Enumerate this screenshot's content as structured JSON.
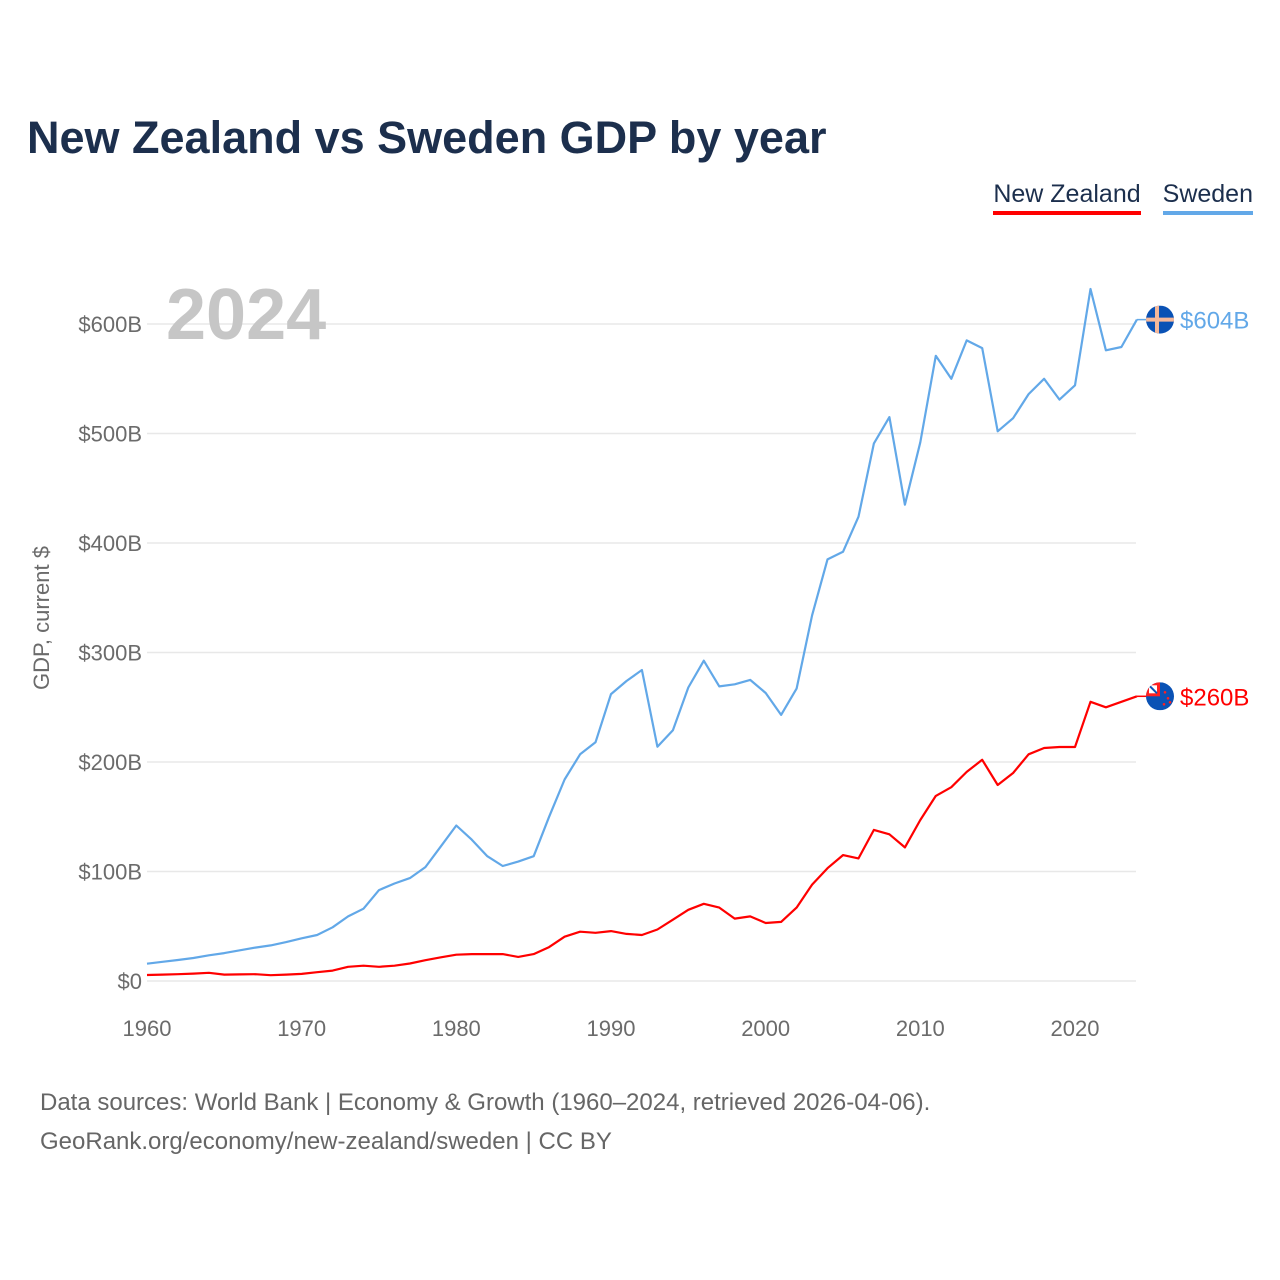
{
  "chart_data": {
    "type": "line",
    "title": "New Zealand vs Sweden GDP by year",
    "ylabel": "GDP, current $",
    "xlabel": "",
    "year_label": "2024",
    "xlim": [
      1960,
      2024
    ],
    "ylim": [
      0,
      650
    ],
    "x_ticks": [
      1960,
      1970,
      1980,
      1990,
      2000,
      2010,
      2020
    ],
    "y_ticks": [
      0,
      100,
      200,
      300,
      400,
      500,
      600
    ],
    "y_tick_labels": [
      "$0",
      "$100B",
      "$200B",
      "$300B",
      "$400B",
      "$500B",
      "$600B"
    ],
    "grid": true,
    "legend_position": "top-right",
    "x": [
      1960,
      1961,
      1962,
      1963,
      1964,
      1965,
      1966,
      1967,
      1968,
      1969,
      1970,
      1971,
      1972,
      1973,
      1974,
      1975,
      1976,
      1977,
      1978,
      1979,
      1980,
      1981,
      1982,
      1983,
      1984,
      1985,
      1986,
      1987,
      1988,
      1989,
      1990,
      1991,
      1992,
      1993,
      1994,
      1995,
      1996,
      1997,
      1998,
      1999,
      2000,
      2001,
      2002,
      2003,
      2004,
      2005,
      2006,
      2007,
      2008,
      2009,
      2010,
      2011,
      2012,
      2013,
      2014,
      2015,
      2016,
      2017,
      2018,
      2019,
      2020,
      2021,
      2022,
      2023,
      2024
    ],
    "series": [
      {
        "name": "New Zealand",
        "color": "#ff0000",
        "end_label": "$260B",
        "flag": "new-zealand-flag",
        "values": [
          5.5,
          5.8,
          6.2,
          6.8,
          7.5,
          5.8,
          6,
          6.2,
          5.3,
          5.8,
          6.5,
          8,
          9.5,
          13,
          14,
          13,
          14,
          16,
          19,
          21.6,
          24,
          24.6,
          24.6,
          24.6,
          22,
          24.6,
          31,
          40.5,
          45,
          44,
          45.6,
          43,
          42,
          47,
          56,
          65,
          70.5,
          67,
          57,
          59,
          53,
          54,
          67,
          88,
          103,
          115,
          112,
          138,
          134,
          122,
          147,
          169,
          177,
          191,
          202,
          179,
          190,
          207,
          212.8,
          213.7,
          213.7,
          255,
          250,
          255,
          260
        ]
      },
      {
        "name": "Sweden",
        "color": "#62a8e8",
        "end_label": "$604B",
        "flag": "sweden-flag",
        "values": [
          15.8,
          17.5,
          19.2,
          21,
          23.5,
          25.5,
          28,
          30.5,
          32.5,
          35.5,
          39,
          42,
          49,
          59,
          66,
          83,
          89,
          94,
          104,
          123,
          142,
          129,
          114,
          105,
          109,
          114,
          150,
          184,
          207,
          218,
          262,
          274,
          284,
          214,
          229,
          268,
          292.5,
          269,
          271,
          275,
          263,
          243,
          267,
          334,
          385,
          392,
          424,
          491,
          515,
          435,
          492,
          571,
          550,
          585,
          578,
          502,
          514,
          536,
          550,
          531,
          544,
          632,
          576,
          579,
          604
        ]
      }
    ]
  },
  "footer": {
    "line1": "Data sources: World Bank | Economy & Growth (1960–2024, retrieved 2026-04-06).",
    "line2": "GeoRank.org/economy/new-zealand/sweden | CC BY"
  }
}
